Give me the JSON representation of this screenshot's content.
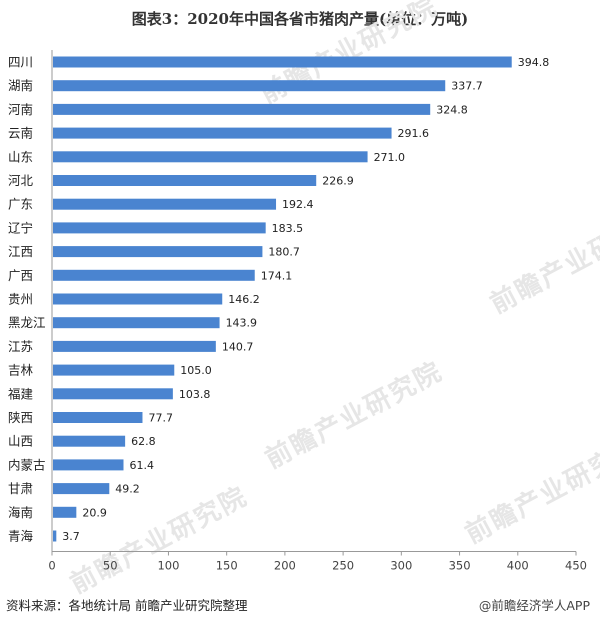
{
  "title": "图表3：2020年中国各省市猪肉产量(单位：万吨)",
  "footer": {
    "source": "资料来源：各地统计局 前瞻产业研究院整理",
    "attribution": "@前瞻经济学人APP"
  },
  "watermark_text": "前瞻产业研究院",
  "colors": {
    "bar": "#4a84d0",
    "axis": "#999999",
    "text": "#222222"
  },
  "chart_data": {
    "type": "bar",
    "orientation": "horizontal",
    "title": "图表3：2020年中国各省市猪肉产量(单位：万吨)",
    "categories": [
      "四川",
      "湖南",
      "河南",
      "云南",
      "山东",
      "河北",
      "广东",
      "辽宁",
      "江西",
      "广西",
      "贵州",
      "黑龙江",
      "江苏",
      "吉林",
      "福建",
      "陕西",
      "山西",
      "内蒙古",
      "甘肃",
      "海南",
      "青海"
    ],
    "values": [
      394.8,
      337.7,
      324.8,
      291.6,
      271.0,
      226.9,
      192.4,
      183.5,
      180.7,
      174.1,
      146.2,
      143.9,
      140.7,
      105.0,
      103.8,
      77.7,
      62.8,
      61.4,
      49.2,
      20.9,
      3.7
    ],
    "value_labels": [
      "394.8",
      "337.7",
      "324.8",
      "291.6",
      "271.0",
      "226.9",
      "192.4",
      "183.5",
      "180.7",
      "174.1",
      "146.2",
      "143.9",
      "140.7",
      "105.0",
      "103.8",
      "77.7",
      "62.8",
      "61.4",
      "49.2",
      "20.9",
      "3.7"
    ],
    "xlim": [
      0,
      450
    ],
    "xticks": [
      0,
      50,
      100,
      150,
      200,
      250,
      300,
      350,
      400,
      450
    ],
    "xtick_labels": [
      "0",
      "50",
      "100",
      "150",
      "200",
      "250",
      "300",
      "350",
      "400",
      "450"
    ],
    "grid": false,
    "legend": "none"
  }
}
